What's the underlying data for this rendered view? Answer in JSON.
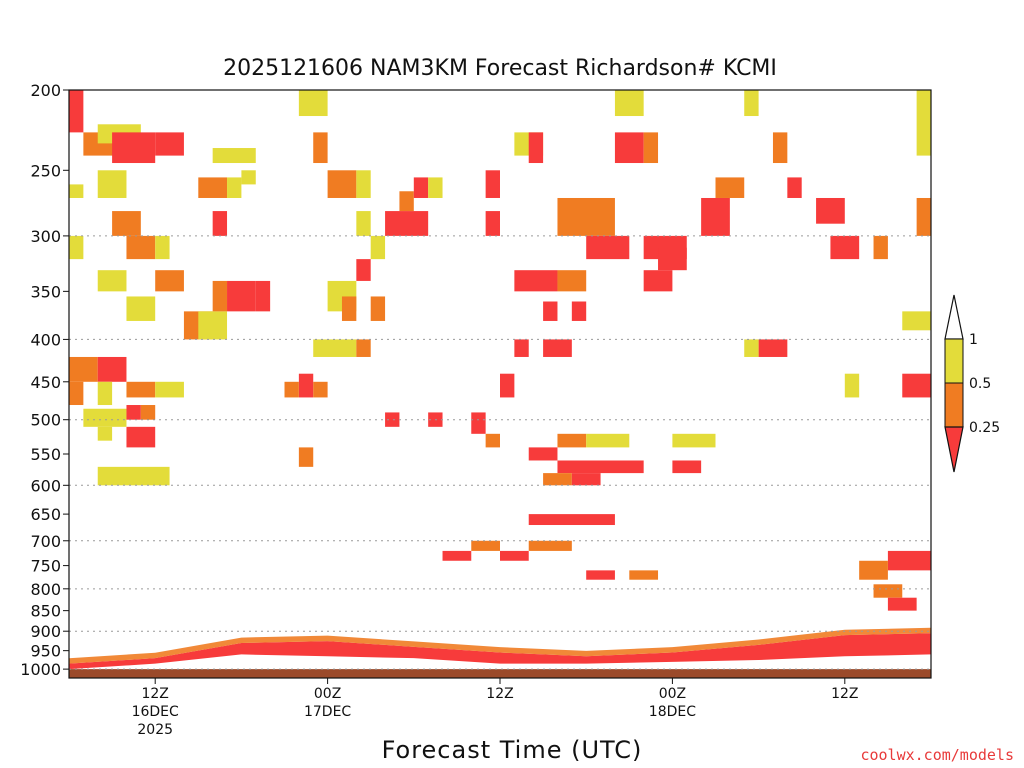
{
  "chart_data": {
    "type": "heatmap",
    "title": "2025121606 NAM3KM Forecast Richardson# KCMI",
    "xlabel": "Forecast Time (UTC)",
    "ylabel": "",
    "x_unit": "forecast hour",
    "xlim": [
      6,
      66
    ],
    "y_scale": "log",
    "ylim": [
      1025,
      200
    ],
    "grid": true,
    "yticks": [
      200,
      250,
      300,
      350,
      400,
      450,
      500,
      550,
      600,
      650,
      700,
      750,
      800,
      850,
      900,
      950,
      1000
    ],
    "gridlines": [
      300,
      400,
      500,
      600,
      700,
      800,
      900,
      1000
    ],
    "xticks": [
      {
        "hour": 12,
        "lines": [
          "12Z",
          "16DEC",
          "2025"
        ]
      },
      {
        "hour": 24,
        "lines": [
          "00Z",
          "17DEC"
        ]
      },
      {
        "hour": 36,
        "lines": [
          "12Z"
        ]
      },
      {
        "hour": 48,
        "lines": [
          "00Z",
          "18DEC"
        ]
      },
      {
        "hour": 60,
        "lines": [
          "12Z"
        ]
      }
    ],
    "colorbar": {
      "ticks": [
        "1",
        "0.5",
        "0.25"
      ],
      "levels": [
        0.25,
        0.5,
        1
      ],
      "colors": {
        "below_0.25": "#f73b3b",
        "0.25_0.5": "#f07c22",
        "0.5_1": "#e3dc3a",
        "above_1": "#ffffff",
        "ground": "#9b4a2a"
      }
    },
    "categories": [
      "Ri<0.25",
      "0.25-0.5",
      "0.5-1"
    ],
    "cells": [
      [
        6,
        7,
        200,
        225,
        "r"
      ],
      [
        6,
        7,
        260,
        270,
        "y"
      ],
      [
        6,
        7,
        300,
        320,
        "y"
      ],
      [
        7,
        11,
        225,
        240,
        "o"
      ],
      [
        8,
        11,
        220,
        232,
        "y"
      ],
      [
        9,
        12,
        225,
        245,
        "r"
      ],
      [
        12,
        14,
        225,
        240,
        "r"
      ],
      [
        8,
        10,
        250,
        270,
        "y"
      ],
      [
        9,
        11,
        280,
        300,
        "o"
      ],
      [
        10,
        12,
        300,
        320,
        "o"
      ],
      [
        12,
        13,
        300,
        320,
        "y"
      ],
      [
        8,
        10,
        330,
        350,
        "y"
      ],
      [
        10,
        12,
        355,
        380,
        "y"
      ],
      [
        12,
        14,
        330,
        350,
        "o"
      ],
      [
        6,
        8,
        420,
        450,
        "o"
      ],
      [
        8,
        10,
        420,
        450,
        "r"
      ],
      [
        6,
        7,
        450,
        480,
        "o"
      ],
      [
        8,
        9,
        450,
        480,
        "y"
      ],
      [
        10,
        12,
        450,
        470,
        "o"
      ],
      [
        12,
        14,
        450,
        470,
        "y"
      ],
      [
        7,
        10,
        485,
        510,
        "y"
      ],
      [
        10,
        11,
        480,
        500,
        "r"
      ],
      [
        11,
        12,
        480,
        500,
        "o"
      ],
      [
        10,
        12,
        510,
        540,
        "r"
      ],
      [
        8,
        9,
        510,
        530,
        "y"
      ],
      [
        8,
        13,
        570,
        600,
        "y"
      ],
      [
        14,
        16,
        370,
        400,
        "o"
      ],
      [
        15,
        17,
        370,
        400,
        "y"
      ],
      [
        16,
        17,
        340,
        370,
        "o"
      ],
      [
        17,
        19,
        340,
        370,
        "r"
      ],
      [
        19,
        20,
        340,
        370,
        "r"
      ],
      [
        15,
        17,
        255,
        270,
        "o"
      ],
      [
        17,
        18,
        255,
        270,
        "y"
      ],
      [
        16,
        17,
        280,
        300,
        "r"
      ],
      [
        18,
        19,
        250,
        260,
        "y"
      ],
      [
        16,
        19,
        235,
        245,
        "y"
      ],
      [
        22,
        24,
        200,
        215,
        "y"
      ],
      [
        23,
        24,
        225,
        245,
        "o"
      ],
      [
        24,
        26,
        250,
        270,
        "o"
      ],
      [
        26,
        27,
        250,
        270,
        "y"
      ],
      [
        26,
        27,
        280,
        300,
        "y"
      ],
      [
        26,
        27,
        320,
        340,
        "r"
      ],
      [
        24,
        26,
        340,
        370,
        "y"
      ],
      [
        25,
        26,
        355,
        380,
        "o"
      ],
      [
        27,
        28,
        355,
        380,
        "o"
      ],
      [
        27,
        28,
        300,
        320,
        "y"
      ],
      [
        28,
        31,
        280,
        300,
        "r"
      ],
      [
        29,
        30,
        265,
        280,
        "o"
      ],
      [
        30,
        31,
        255,
        270,
        "r"
      ],
      [
        31,
        32,
        255,
        270,
        "y"
      ],
      [
        23,
        26,
        400,
        420,
        "y"
      ],
      [
        26,
        27,
        400,
        420,
        "o"
      ],
      [
        22,
        23,
        440,
        470,
        "r"
      ],
      [
        21,
        22,
        450,
        470,
        "o"
      ],
      [
        23,
        24,
        450,
        470,
        "o"
      ],
      [
        22,
        23,
        540,
        570,
        "o"
      ],
      [
        28,
        29,
        490,
        510,
        "r"
      ],
      [
        31,
        32,
        490,
        510,
        "r"
      ],
      [
        34,
        35,
        490,
        520,
        "r"
      ],
      [
        35,
        36,
        520,
        540,
        "o"
      ],
      [
        36,
        37,
        440,
        470,
        "r"
      ],
      [
        35,
        36,
        250,
        270,
        "r"
      ],
      [
        35,
        36,
        280,
        300,
        "r"
      ],
      [
        37,
        39,
        225,
        240,
        "y"
      ],
      [
        38,
        39,
        225,
        245,
        "r"
      ],
      [
        37,
        40,
        330,
        350,
        "r"
      ],
      [
        40,
        42,
        330,
        350,
        "o"
      ],
      [
        37,
        38,
        400,
        420,
        "r"
      ],
      [
        39,
        41,
        400,
        420,
        "r"
      ],
      [
        39,
        40,
        360,
        380,
        "r"
      ],
      [
        41,
        42,
        360,
        380,
        "r"
      ],
      [
        40,
        44,
        270,
        300,
        "o"
      ],
      [
        42,
        45,
        300,
        320,
        "r"
      ],
      [
        44,
        46,
        225,
        245,
        "r"
      ],
      [
        46,
        47,
        225,
        245,
        "o"
      ],
      [
        44,
        46,
        200,
        215,
        "y"
      ],
      [
        46,
        49,
        300,
        320,
        "r"
      ],
      [
        46,
        48,
        330,
        350,
        "r"
      ],
      [
        47,
        49,
        310,
        330,
        "r"
      ],
      [
        40,
        46,
        560,
        580,
        "r"
      ],
      [
        38,
        40,
        540,
        560,
        "r"
      ],
      [
        40,
        42,
        520,
        540,
        "o"
      ],
      [
        42,
        45,
        520,
        540,
        "y"
      ],
      [
        39,
        41,
        580,
        600,
        "o"
      ],
      [
        41,
        43,
        580,
        600,
        "r"
      ],
      [
        38,
        44,
        650,
        670,
        "r"
      ],
      [
        38,
        41,
        700,
        720,
        "o"
      ],
      [
        34,
        36,
        700,
        720,
        "o"
      ],
      [
        36,
        38,
        720,
        740,
        "r"
      ],
      [
        32,
        34,
        720,
        740,
        "r"
      ],
      [
        42,
        44,
        760,
        780,
        "r"
      ],
      [
        45,
        47,
        760,
        780,
        "o"
      ],
      [
        48,
        50,
        560,
        580,
        "r"
      ],
      [
        48,
        51,
        520,
        540,
        "y"
      ],
      [
        50,
        52,
        270,
        300,
        "r"
      ],
      [
        51,
        53,
        255,
        270,
        "o"
      ],
      [
        53,
        54,
        200,
        215,
        "y"
      ],
      [
        55,
        56,
        225,
        245,
        "o"
      ],
      [
        56,
        57,
        255,
        270,
        "r"
      ],
      [
        58,
        60,
        270,
        290,
        "r"
      ],
      [
        59,
        61,
        300,
        320,
        "r"
      ],
      [
        62,
        63,
        300,
        320,
        "o"
      ],
      [
        54,
        56,
        400,
        420,
        "r"
      ],
      [
        53,
        54,
        400,
        420,
        "y"
      ],
      [
        60,
        61,
        440,
        470,
        "y"
      ],
      [
        64,
        66,
        440,
        470,
        "r"
      ],
      [
        65,
        66,
        200,
        240,
        "y"
      ],
      [
        64,
        66,
        370,
        390,
        "y"
      ],
      [
        65,
        66,
        270,
        300,
        "o"
      ],
      [
        63,
        66,
        720,
        760,
        "r"
      ],
      [
        61,
        63,
        740,
        780,
        "o"
      ],
      [
        62,
        64,
        790,
        820,
        "o"
      ],
      [
        63,
        65,
        820,
        850,
        "r"
      ]
    ],
    "lower_bands": [
      {
        "hour": 6,
        "top": 985,
        "bottom": 1000,
        "color": "r"
      },
      {
        "hour": 12,
        "top": 970,
        "bottom": 985,
        "color": "r"
      },
      {
        "hour": 18,
        "top": 930,
        "bottom": 960,
        "color": "r"
      },
      {
        "hour": 24,
        "top": 925,
        "bottom": 965,
        "color": "r"
      },
      {
        "hour": 30,
        "top": 940,
        "bottom": 970,
        "color": "r"
      },
      {
        "hour": 36,
        "top": 955,
        "bottom": 985,
        "color": "r"
      },
      {
        "hour": 42,
        "top": 965,
        "bottom": 985,
        "color": "r"
      },
      {
        "hour": 48,
        "top": 955,
        "bottom": 980,
        "color": "r"
      },
      {
        "hour": 54,
        "top": 935,
        "bottom": 975,
        "color": "r"
      },
      {
        "hour": 60,
        "top": 910,
        "bottom": 965,
        "color": "r"
      },
      {
        "hour": 66,
        "top": 905,
        "bottom": 960,
        "color": "r"
      }
    ],
    "ground_top_mb": 1000
  },
  "credit": "coolwx.com/models"
}
